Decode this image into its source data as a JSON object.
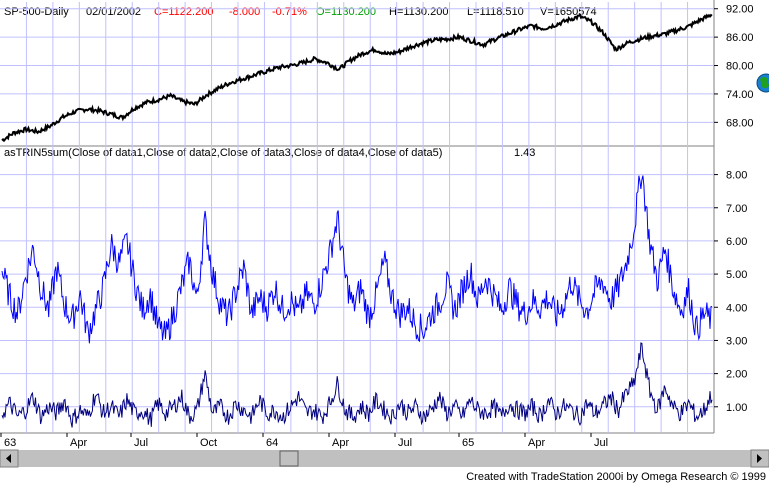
{
  "header": {
    "symbol": "SP-500-Daily",
    "date": "02/01/2002",
    "close": "C=1122.200",
    "change": "-8.000",
    "change_pct": "-0.71%",
    "open": "O=1130.200",
    "high": "H=1130.200",
    "low": "L=1118.510",
    "volume": "V=1650574"
  },
  "indicator_label": "asTRIN5sum(Close of data1,Close of data2,Close of data3,Close of data4,Close of data5)",
  "indicator_value": "1.43",
  "footer": "Created with TradeStation 2000i by Omega Research © 1999",
  "colors": {
    "background": "#ffffff",
    "grid": "#c0c0ff",
    "price_line": "#000000",
    "trin_sum_line": "#0000ff",
    "trin_daily_line": "#000080",
    "header_close": "#ff0000",
    "header_open": "#00a000",
    "scrollbar": "#c0c0c0",
    "globe": "#00a000"
  },
  "chart_data": [
    {
      "type": "line",
      "title": "SP-500-Daily",
      "x_ticks": [
        "63",
        "Apr",
        "Jul",
        "Oct",
        "64",
        "Apr",
        "Jul",
        "65",
        "Apr",
        "Jul"
      ],
      "y_ticks": [
        "92.00",
        "86.00",
        "80.00",
        "74.00",
        "68.00"
      ],
      "ylim": [
        63,
        93
      ],
      "grid": true,
      "series": [
        {
          "values": [
            64.2,
            65.8,
            66.5,
            66.0,
            67.2,
            69.0,
            70.2,
            70.8,
            70.5,
            69.8,
            69.0,
            71.0,
            72.2,
            72.8,
            73.6,
            72.4,
            71.8,
            73.8,
            75.2,
            76.4,
            77.2,
            78.0,
            78.8,
            79.6,
            80.0,
            80.6,
            81.4,
            80.6,
            79.2,
            81.2,
            82.6,
            83.4,
            82.4,
            82.9,
            84.0,
            84.8,
            85.4,
            85.6,
            86.0,
            85.2,
            84.4,
            85.6,
            86.6,
            87.6,
            88.4,
            87.8,
            88.6,
            89.6,
            90.4,
            89.2,
            86.8,
            83.4,
            84.8,
            85.6,
            86.2,
            86.6,
            87.4,
            88.2,
            89.6,
            90.8
          ]
        }
      ]
    },
    {
      "type": "line",
      "title": "asTRIN5sum(Close of data1,Close of data2,Close of data3,Close of data4,Close of data5)",
      "y_ticks": [
        "8.00",
        "7.00",
        "6.00",
        "5.00",
        "4.00",
        "3.00",
        "2.00",
        "1.00"
      ],
      "ylim": [
        0.3,
        8.5
      ],
      "grid": true,
      "series": [
        {
          "values": [
            5.1,
            4.3,
            3.8,
            4.9,
            5.8,
            4.6,
            3.9,
            5.2,
            4.1,
            3.6,
            4.4,
            3.2,
            3.9,
            4.6,
            5.9,
            5.3,
            6.0,
            4.8,
            3.9,
            4.4,
            3.4,
            3.1,
            3.8,
            4.6,
            5.4,
            4.2,
            6.6,
            5.0,
            4.1,
            3.7,
            4.5,
            5.2,
            3.8,
            4.3,
            4.0,
            4.6,
            3.9,
            4.2,
            3.8,
            4.4,
            4.1,
            4.8,
            5.6,
            6.7,
            4.9,
            4.0,
            4.6,
            3.7,
            4.4,
            5.4,
            4.3,
            3.8,
            4.0,
            3.5,
            3.3,
            3.8,
            4.1,
            4.7,
            3.9,
            4.5,
            5.1,
            4.2,
            4.9,
            4.4,
            3.9,
            4.6,
            4.1,
            3.8,
            4.2,
            4.0,
            4.3,
            3.7,
            4.1,
            4.8,
            4.2,
            3.9,
            4.5,
            4.8,
            4.2,
            4.6,
            5.3,
            6.4,
            8.2,
            6.0,
            4.8,
            5.8,
            4.6,
            3.9,
            4.5,
            3.3,
            3.8,
            3.6
          ]
        },
        {
          "values": [
            0.8,
            1.1,
            0.7,
            0.9,
            1.3,
            0.7,
            1.0,
            0.8,
            1.2,
            0.6,
            0.9,
            0.7,
            1.4,
            0.8,
            1.0,
            0.7,
            1.2,
            0.8,
            0.9,
            0.6,
            1.1,
            0.8,
            1.0,
            1.3,
            0.7,
            0.9,
            2.0,
            0.8,
            1.0,
            0.7,
            1.1,
            0.9,
            0.7,
            1.2,
            0.8,
            0.9,
            0.7,
            1.0,
            1.3,
            0.8,
            0.9,
            0.7,
            1.1,
            1.7,
            0.9,
            0.7,
            1.0,
            0.8,
            1.2,
            0.9,
            0.7,
            1.1,
            0.8,
            1.0,
            0.7,
            0.9,
            1.3,
            0.8,
            1.0,
            0.7,
            1.2,
            0.9,
            0.8,
            1.0,
            0.7,
            1.1,
            0.9,
            0.8,
            1.0,
            0.7,
            1.2,
            0.8,
            1.0,
            0.9,
            0.7,
            1.1,
            0.8,
            1.0,
            1.3,
            0.9,
            1.4,
            1.7,
            2.8,
            1.5,
            0.9,
            1.6,
            1.0,
            0.8,
            1.1,
            0.7,
            0.9,
            1.4
          ]
        }
      ]
    }
  ]
}
